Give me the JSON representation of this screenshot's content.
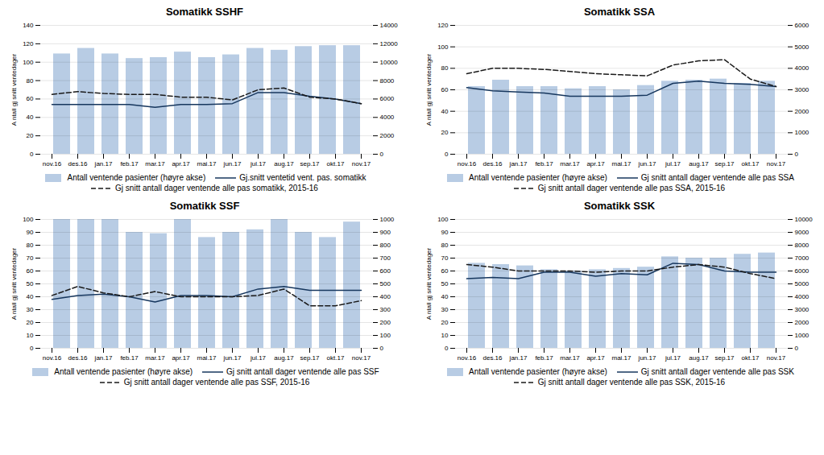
{
  "chart_data": [
    {
      "type": "combo",
      "title": "Somatikk SSHF",
      "categories": [
        "nov.16",
        "des.16",
        "jan.17",
        "feb.17",
        "mar.17",
        "apr.17",
        "mai.17",
        "jun.17",
        "jul.17",
        "aug.17",
        "sep.17",
        "okt.17",
        "nov.17"
      ],
      "series": [
        {
          "name": "Antall ventende pasienter (høyre akse)",
          "type": "bar",
          "axis": "y2",
          "color": "#b8cce4",
          "values": [
            10900,
            11500,
            10900,
            10400,
            10500,
            11100,
            10500,
            10800,
            11500,
            11300,
            11700,
            11800,
            11800
          ]
        },
        {
          "name": "Gj.snitt ventetid vent. pas. somatikk",
          "type": "line",
          "line_style": "solid",
          "color": "#17375e",
          "values": [
            54,
            54,
            54,
            54,
            51,
            54,
            54,
            55,
            67,
            67,
            63,
            60,
            55
          ]
        },
        {
          "name": "Gj snitt antall dager ventende alle pas somatikk, 2015-16",
          "type": "line",
          "line_style": "dashed",
          "color": "#1a1a1a",
          "values": [
            65,
            68,
            66,
            65,
            65,
            62,
            62,
            59,
            70,
            72,
            62,
            60,
            55
          ]
        }
      ],
      "ylabel": "A ntall gj snitt ventedager",
      "ylim": [
        0,
        140
      ],
      "yticks": [
        0,
        20,
        40,
        60,
        80,
        100,
        120,
        140
      ],
      "y2lim": [
        0,
        14000
      ],
      "y2ticks": [
        0,
        2000,
        4000,
        6000,
        8000,
        10000,
        12000,
        14000
      ],
      "grid": true,
      "legend": "bottom"
    },
    {
      "type": "combo",
      "title": "Somatikk SSA",
      "categories": [
        "nov.16",
        "des.16",
        "jan.17",
        "feb.17",
        "mar.17",
        "apr.17",
        "mai.17",
        "jun.17",
        "jul.17",
        "aug.17",
        "sep.17",
        "okt.17",
        "nov.17"
      ],
      "series": [
        {
          "name": "Antall ventende pasienter (høyre akse)",
          "type": "bar",
          "axis": "y2",
          "color": "#b8cce4",
          "values": [
            3150,
            3450,
            3150,
            3150,
            3050,
            3150,
            3000,
            3200,
            3400,
            3450,
            3500,
            3300,
            3400
          ]
        },
        {
          "name": "Gj snitt antall dager ventende alle pas SSA",
          "type": "line",
          "line_style": "solid",
          "color": "#17375e",
          "values": [
            62,
            59,
            58,
            57,
            54,
            54,
            54,
            55,
            66,
            68,
            66,
            65,
            63
          ]
        },
        {
          "name": "Gj snitt antall dager ventende alle pas SSA, 2015-16",
          "type": "line",
          "line_style": "dashed",
          "color": "#1a1a1a",
          "values": [
            75,
            80,
            80,
            79,
            77,
            75,
            74,
            73,
            83,
            87,
            88,
            70,
            63
          ]
        }
      ],
      "ylabel": "A ntall gj snitt ventedager",
      "ylim": [
        0,
        120
      ],
      "yticks": [
        0,
        20,
        40,
        60,
        80,
        100,
        120
      ],
      "y2lim": [
        0,
        6000
      ],
      "y2ticks": [
        0,
        1000,
        2000,
        3000,
        4000,
        5000,
        6000
      ],
      "grid": true,
      "legend": "bottom"
    },
    {
      "type": "combo",
      "title": "Somatikk SSF",
      "categories": [
        "nov.16",
        "des.16",
        "jan.17",
        "feb.17",
        "mar.17",
        "apr.17",
        "mai.17",
        "jun.17",
        "jul.17",
        "aug.17",
        "sep.17",
        "okt.17",
        "nov.17"
      ],
      "series": [
        {
          "name": "Antall ventende pasienter (høyre akse)",
          "type": "bar",
          "axis": "y2",
          "color": "#b8cce4",
          "values": [
            1000,
            1000,
            1000,
            900,
            890,
            1000,
            860,
            900,
            920,
            1000,
            900,
            860,
            980
          ]
        },
        {
          "name": "Gj snitt antall dager ventende alle pas SSF",
          "type": "line",
          "line_style": "solid",
          "color": "#17375e",
          "values": [
            38,
            41,
            42,
            40,
            36,
            41,
            41,
            40,
            46,
            48,
            45,
            45,
            45
          ]
        },
        {
          "name": "Gj snitt antall dager ventende alle pas SSF, 2015-16",
          "type": "line",
          "line_style": "dashed",
          "color": "#1a1a1a",
          "values": [
            41,
            48,
            43,
            40,
            44,
            40,
            40,
            40,
            41,
            46,
            33,
            33,
            37
          ]
        }
      ],
      "ylabel": "A ntall gj snitt ventedager",
      "ylim": [
        0,
        100
      ],
      "yticks": [
        0,
        10,
        20,
        30,
        40,
        50,
        60,
        70,
        80,
        90,
        100
      ],
      "y2lim": [
        0,
        1000
      ],
      "y2ticks": [
        0,
        100,
        200,
        300,
        400,
        500,
        600,
        700,
        800,
        900,
        1000
      ],
      "grid": true,
      "legend": "bottom"
    },
    {
      "type": "combo",
      "title": "Somatikk SSK",
      "categories": [
        "nov.16",
        "des.16",
        "jan.17",
        "feb.17",
        "mar.17",
        "apr.17",
        "mai.17",
        "jun.17",
        "jul.17",
        "aug.17",
        "sep.17",
        "okt.17",
        "nov.17"
      ],
      "series": [
        {
          "name": "Antall ventende pasienter (høyre akse)",
          "type": "bar",
          "axis": "y2",
          "color": "#b8cce4",
          "values": [
            6600,
            6500,
            6400,
            6100,
            6000,
            6100,
            6200,
            6300,
            7100,
            7000,
            7000,
            7300,
            7400
          ]
        },
        {
          "name": "Gj snitt antall dager ventende alle pas SSK",
          "type": "line",
          "line_style": "solid",
          "color": "#17375e",
          "values": [
            54,
            55,
            54,
            59,
            59,
            56,
            58,
            57,
            66,
            65,
            60,
            59,
            59
          ]
        },
        {
          "name": "Gj snitt antall dager ventende alle pas SSK, 2015-16",
          "type": "line",
          "line_style": "dashed",
          "color": "#1a1a1a",
          "values": [
            65,
            63,
            60,
            60,
            60,
            59,
            60,
            60,
            63,
            65,
            63,
            58,
            54
          ]
        }
      ],
      "ylabel": "A ntall gj snitt ventedager",
      "ylim": [
        0,
        100
      ],
      "yticks": [
        0,
        10,
        20,
        30,
        40,
        50,
        60,
        70,
        80,
        90,
        100
      ],
      "y2lim": [
        0,
        10000
      ],
      "y2ticks": [
        0,
        1000,
        2000,
        3000,
        4000,
        5000,
        6000,
        7000,
        8000,
        9000,
        10000
      ],
      "grid": true,
      "legend": "bottom"
    }
  ]
}
